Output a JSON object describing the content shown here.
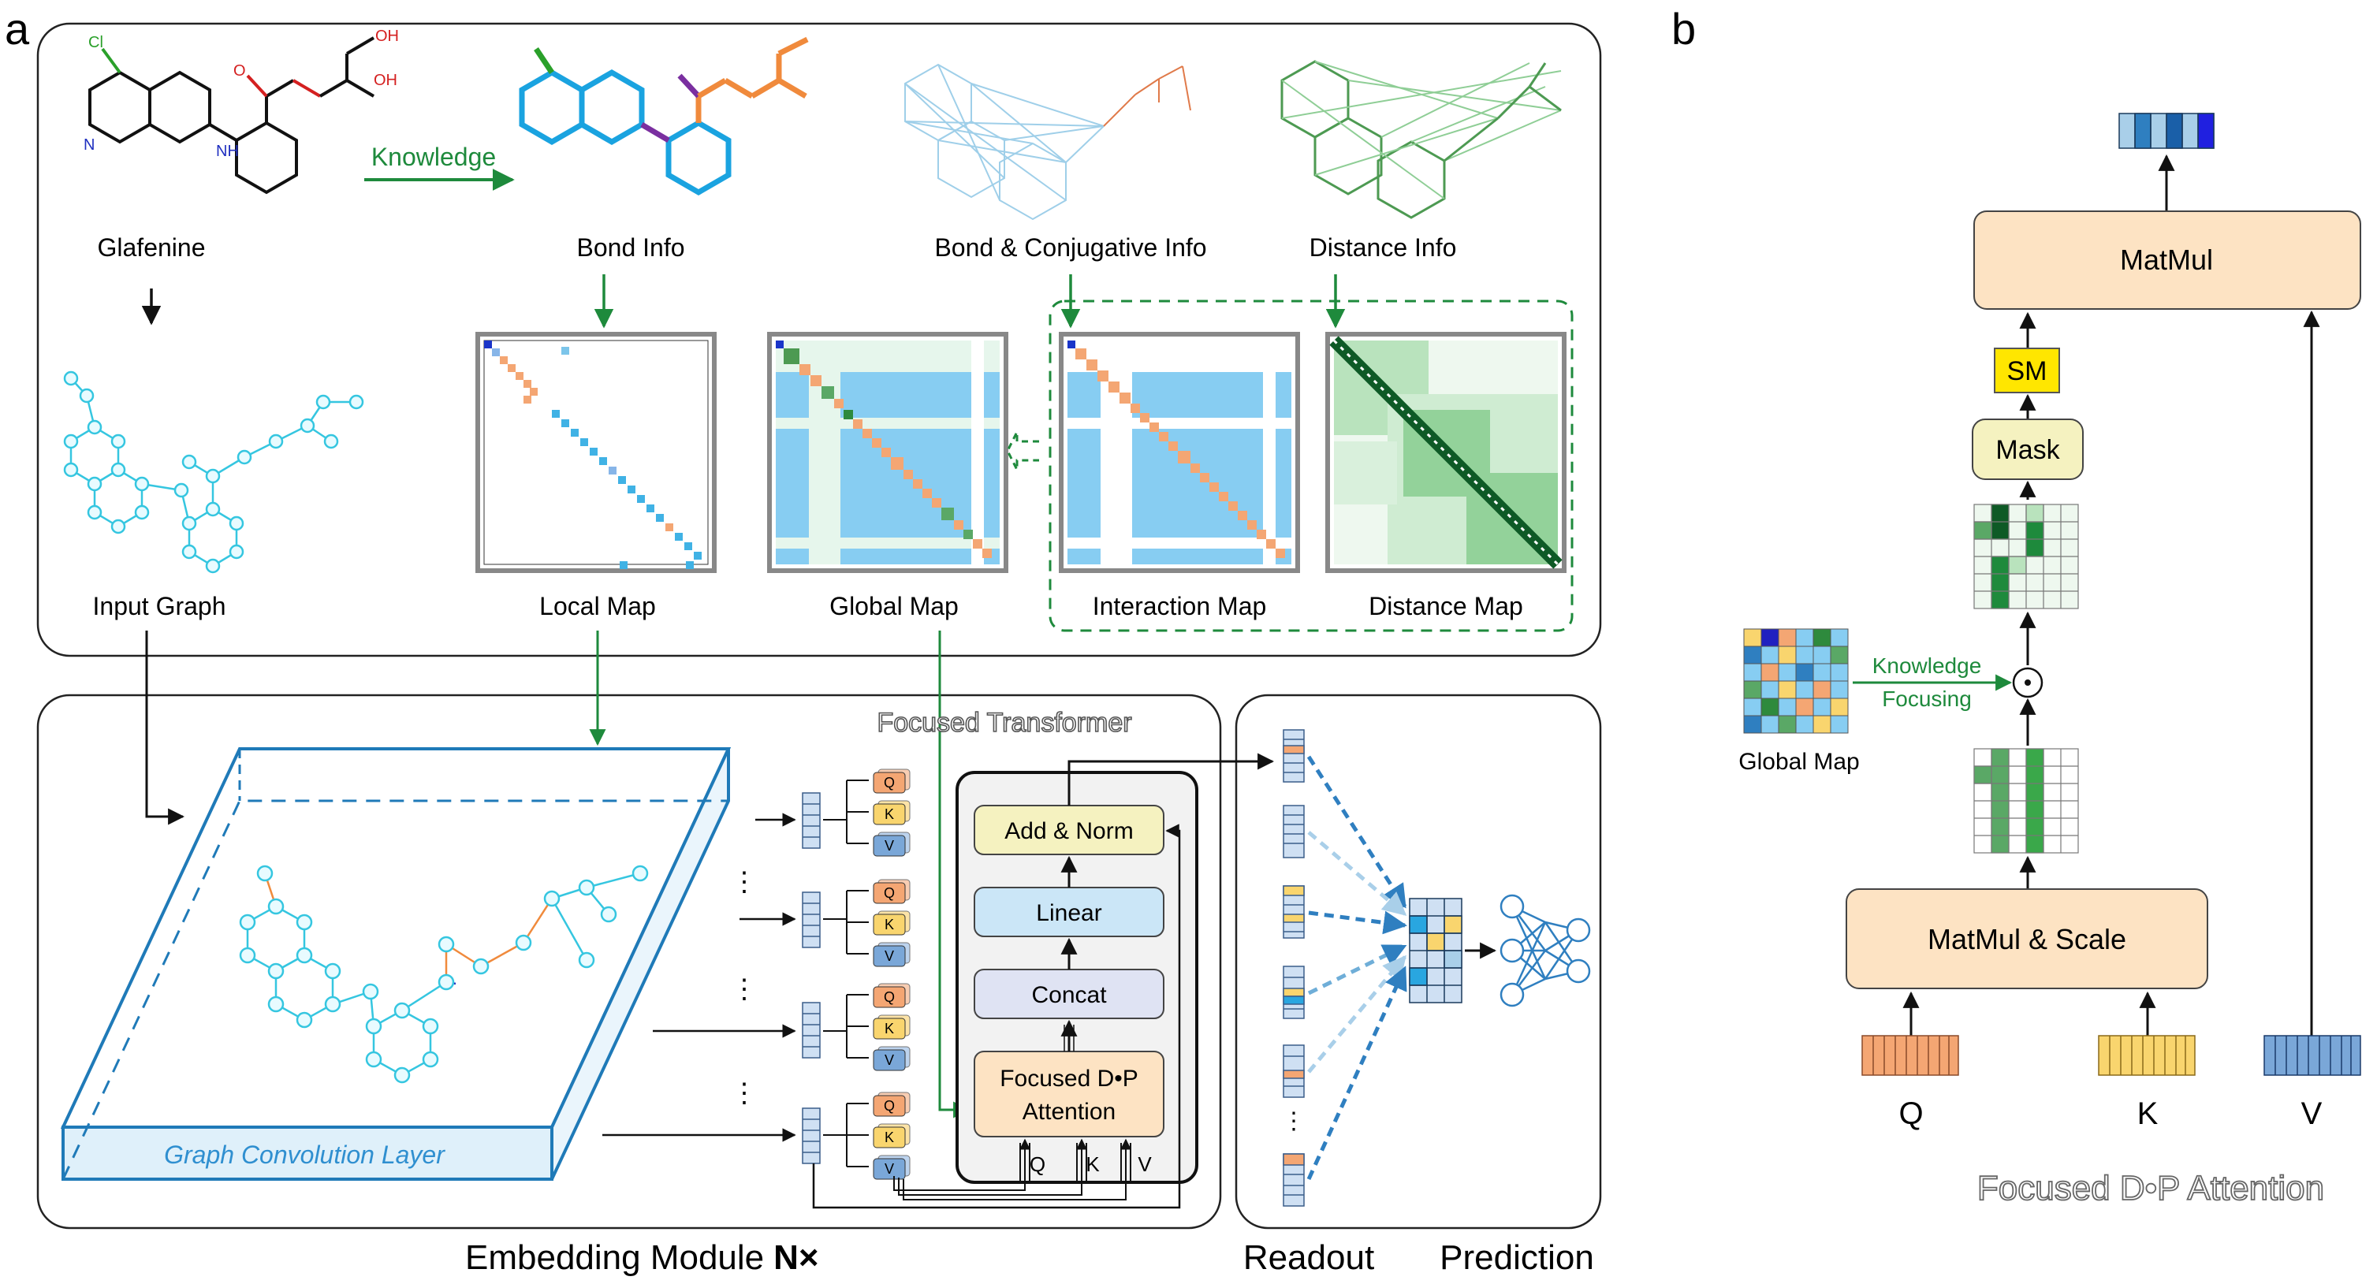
{
  "panels": {
    "a": "a",
    "b": "b"
  },
  "top": {
    "glafenine": "Glafenine",
    "knowledge_arrow": "Knowledge",
    "bond_info": "Bond Info",
    "bond_conj_info": "Bond & Conjugative Info",
    "distance_info": "Distance Info",
    "input_graph": "Input Graph",
    "local_map": "Local Map",
    "global_map": "Global Map",
    "interaction_map": "Interaction Map",
    "distance_map": "Distance Map",
    "atoms": {
      "cl": "Cl",
      "n": "N",
      "nh": "NH",
      "o": "O",
      "oh1": "OH",
      "oh2": "OH"
    }
  },
  "bottom": {
    "focused_transformer": "Focused Transformer",
    "graph_conv_layer": "Graph Convolution Layer",
    "embedding_module": "Embedding Module",
    "embedding_module_n": "N×",
    "readout": "Readout",
    "prediction": "Prediction",
    "add_norm": "Add & Norm",
    "linear": "Linear",
    "concat": "Concat",
    "focused_attn_line1": "Focused D•P",
    "focused_attn_line2": "Attention",
    "q": "Q",
    "k": "K",
    "v": "V",
    "ellipsis": "⋮"
  },
  "panel_b": {
    "matmul": "MatMul",
    "sm": "SM",
    "mask": "Mask",
    "knowledge_line1": "Knowledge",
    "knowledge_line2": "Focusing",
    "global_map": "Global Map",
    "matmul_scale": "MatMul & Scale",
    "q": "Q",
    "k": "K",
    "v": "V",
    "title": "Focused D•P Attention",
    "odot": "⊙"
  },
  "colors": {
    "green_arrow": "#1e8a3c",
    "cyan_graph": "#35c6e0",
    "orange_block": "#f4a673",
    "yellow_block": "#f9d56e",
    "blue_block": "#7aa7d8",
    "sky": "#87cdf2",
    "peach_box": "#fde3c3",
    "light_blue_box": "#cbe6f7",
    "lavender_box": "#dfe3f3",
    "yellow_box": "#f5f2c0",
    "sm_yellow": "#ffe600",
    "dark_green": "#1a6b33"
  }
}
